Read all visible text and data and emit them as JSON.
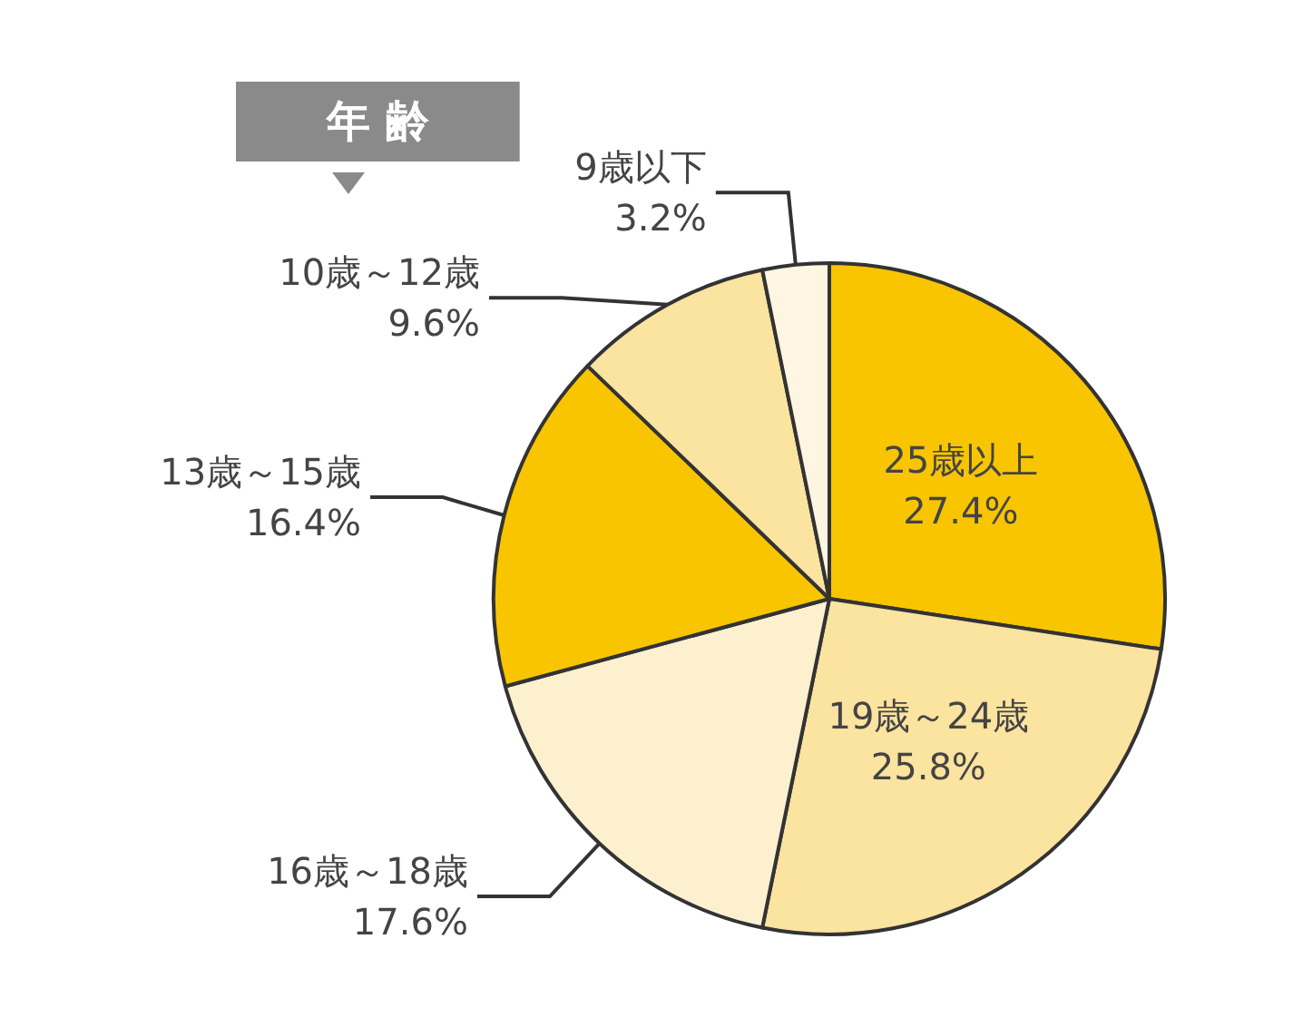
{
  "chart_data": {
    "type": "pie",
    "title": "年 齢",
    "categories": [
      "25歳以上",
      "19歳～24歳",
      "16歳～18歳",
      "13歳～15歳",
      "10歳～12歳",
      "9歳以下"
    ],
    "values": [
      27.4,
      25.8,
      17.6,
      16.4,
      9.6,
      3.2
    ],
    "value_labels": [
      "27.4%",
      "25.8%",
      "17.6%",
      "16.4%",
      "9.6%",
      "3.2%"
    ],
    "colors": [
      "#f8c500",
      "#fbe3a0",
      "#fdf0cf",
      "#f8c500",
      "#fbe3a0",
      "#fef6e2"
    ],
    "legend": false
  }
}
